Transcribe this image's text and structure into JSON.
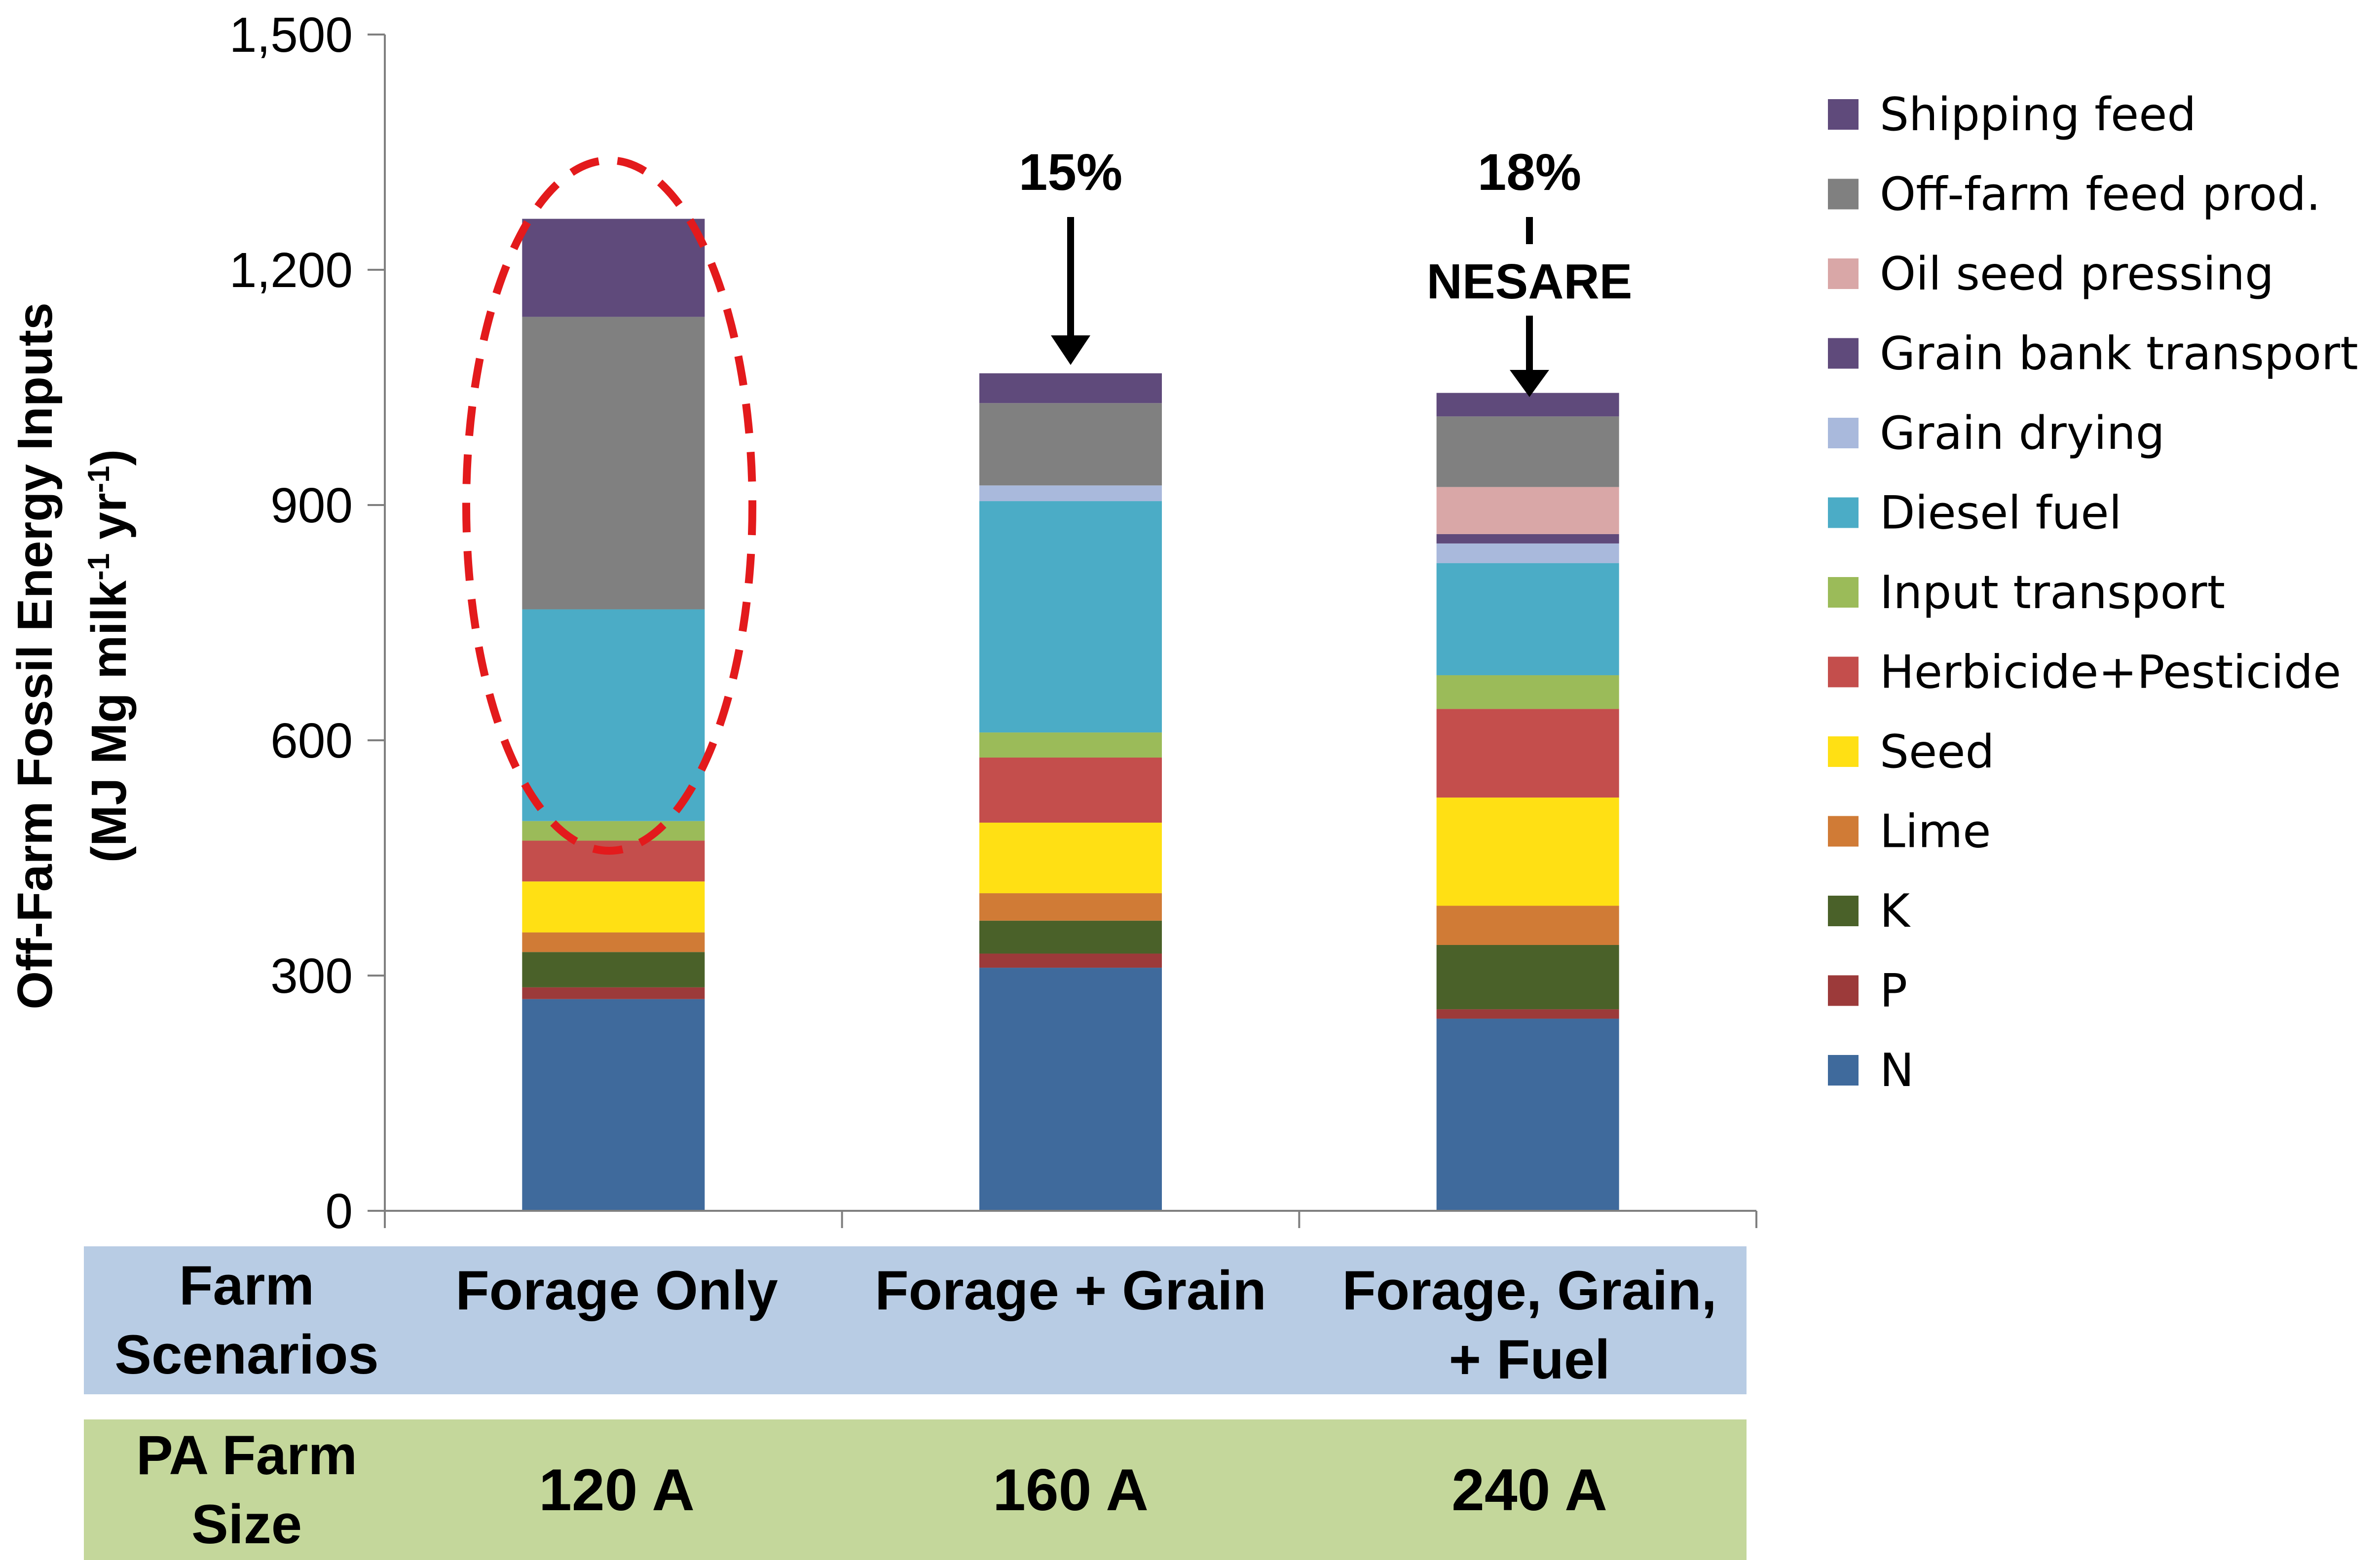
{
  "chart_data": {
    "type": "bar",
    "stacked": true,
    "ylabel_line1": "Off-Farm Fossil Energy Inputs",
    "ylabel_line2_prefix": "(MJ Mg milk",
    "ylabel_line2_sup1": "-1",
    "ylabel_line2_mid": " yr",
    "ylabel_line2_sup2": "-1",
    "ylabel_line2_suffix": ")",
    "ylim": [
      0,
      1500
    ],
    "yticks": [
      0,
      300,
      600,
      900,
      1200,
      1500
    ],
    "ytick_labels": [
      "0",
      "300",
      "600",
      "900",
      "1,200",
      "1,500"
    ],
    "legend_position": "right",
    "categories": [
      "Forage Only",
      "Forage + Grain",
      "Forage, Grain, + Fuel"
    ],
    "series": [
      {
        "name": "N",
        "color": "#3f6a9c",
        "values": [
          270,
          310,
          245
        ]
      },
      {
        "name": "P",
        "color": "#9c3a3a",
        "values": [
          15,
          18,
          12
        ]
      },
      {
        "name": "K",
        "color": "#4a6129",
        "values": [
          45,
          42,
          82
        ]
      },
      {
        "name": "Lime",
        "color": "#d07b36",
        "values": [
          25,
          35,
          50
        ]
      },
      {
        "name": "Seed",
        "color": "#ffe014",
        "values": [
          65,
          90,
          138
        ]
      },
      {
        "name": "Herbicide+Pesticide",
        "color": "#c44e4c",
        "values": [
          52,
          83,
          113
        ]
      },
      {
        "name": "Input transport",
        "color": "#9bbb59",
        "values": [
          25,
          32,
          43
        ]
      },
      {
        "name": "Diesel fuel",
        "color": "#4bacc6",
        "values": [
          270,
          295,
          143
        ]
      },
      {
        "name": "Grain drying",
        "color": "#a9b9dc",
        "values": [
          0,
          20,
          25
        ]
      },
      {
        "name": "Grain bank transport",
        "color": "#5f4a7b",
        "values": [
          0,
          0,
          12
        ]
      },
      {
        "name": "Oil seed pressing",
        "color": "#d9a7a7",
        "values": [
          0,
          0,
          60
        ]
      },
      {
        "name": "Off-farm feed prod.",
        "color": "#808080",
        "values": [
          373,
          105,
          90
        ]
      },
      {
        "name": "Shipping feed",
        "color": "#5f4a7b",
        "values": [
          125,
          38,
          30
        ]
      }
    ],
    "annotations": {
      "bar2_pct": "15%",
      "bar3_pct": "18%",
      "bar3_label": "NESARE"
    }
  },
  "table": {
    "row1_header": "Farm\nScenarios",
    "row1_values": [
      "Forage Only",
      "Forage + Grain",
      "Forage, Grain,\n+ Fuel"
    ],
    "row2_header": "PA Farm\nSize",
    "row2_values": [
      "120 A",
      "160 A",
      "240 A"
    ]
  },
  "colors": {
    "row1_band": "#b8cce4",
    "row2_band": "#c4d79b",
    "highlight_ellipse": "#e31a1c"
  }
}
